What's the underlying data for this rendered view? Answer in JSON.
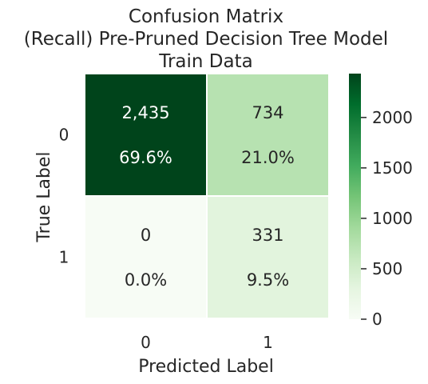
{
  "chart_data": {
    "type": "heatmap",
    "title_lines": [
      "Confusion Matrix",
      "(Recall) Pre-Pruned Decision Tree Model",
      "Train Data"
    ],
    "xlabel": "Predicted Label",
    "ylabel": "True Label",
    "x_categories": [
      "0",
      "1"
    ],
    "y_categories": [
      "0",
      "1"
    ],
    "values": [
      [
        2435,
        734
      ],
      [
        0,
        331
      ]
    ],
    "cell_labels": [
      [
        [
          "2,435",
          "69.6%"
        ],
        [
          "734",
          "21.0%"
        ]
      ],
      [
        [
          "0",
          "0.0%"
        ],
        [
          "331",
          "9.5%"
        ]
      ]
    ],
    "colorbar": {
      "colormap": "Greens",
      "min": 0,
      "max": 2435,
      "ticks": [
        0,
        500,
        1000,
        1500,
        2000
      ],
      "tick_labels": [
        "0",
        "500",
        "1000",
        "1500",
        "2000"
      ]
    },
    "colors": {
      "low": "#f7fcf5",
      "high": "#00441b",
      "text_dark": "#262626",
      "text_light": "#ffffff",
      "cell_border": "#ffffff"
    }
  }
}
